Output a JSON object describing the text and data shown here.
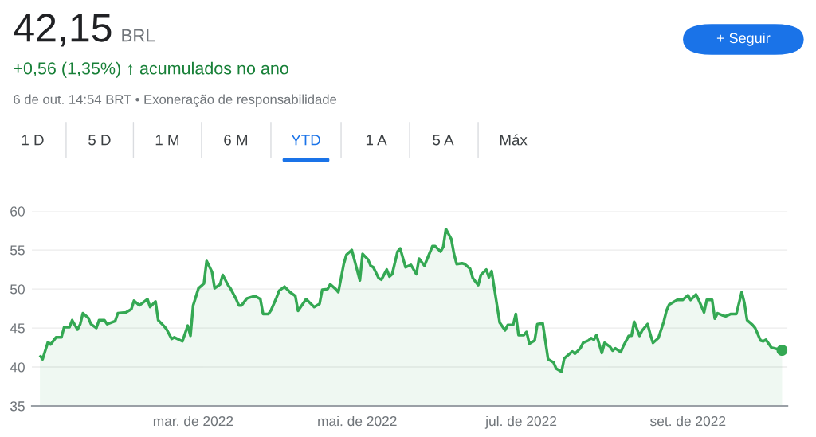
{
  "chart_data": {
    "type": "area",
    "title": "42,15",
    "subtitle": "BRL",
    "annotations": [
      "+0,56 (1,35%) ↑ acumulados no ano",
      "6 de out. 14:54 BRT • Exoneração de responsabilidade",
      "1 D",
      "5 D",
      "1 M",
      "6 M",
      "YTD",
      "1 A",
      "5 A",
      "Máx",
      "+ Seguir"
    ],
    "x": [
      "2022-01-03",
      "2022-01-04",
      "2022-01-06",
      "2022-01-07",
      "2022-01-09",
      "2022-01-11",
      "2022-01-12",
      "2022-01-14",
      "2022-01-15",
      "2022-01-17",
      "2022-01-18",
      "2022-01-19",
      "2022-01-21",
      "2022-01-22",
      "2022-01-24",
      "2022-01-25",
      "2022-01-27",
      "2022-01-28",
      "2022-01-31",
      "2022-02-01",
      "2022-02-04",
      "2022-02-06",
      "2022-02-07",
      "2022-02-09",
      "2022-02-12",
      "2022-02-13",
      "2022-02-15",
      "2022-02-16",
      "2022-02-18",
      "2022-02-19",
      "2022-02-21",
      "2022-02-22",
      "2022-02-25",
      "2022-02-27",
      "2022-02-28",
      "2022-03-01",
      "2022-03-03",
      "2022-03-05",
      "2022-03-06",
      "2022-03-08",
      "2022-03-09",
      "2022-03-11",
      "2022-03-12",
      "2022-03-14",
      "2022-03-15",
      "2022-03-17",
      "2022-03-18",
      "2022-03-19",
      "2022-03-21",
      "2022-03-24",
      "2022-03-26",
      "2022-03-27",
      "2022-03-29",
      "2022-03-30",
      "2022-04-01",
      "2022-04-02",
      "2022-04-04",
      "2022-04-06",
      "2022-04-08",
      "2022-04-09",
      "2022-04-11",
      "2022-04-12",
      "2022-04-15",
      "2022-04-17",
      "2022-04-18",
      "2022-04-20",
      "2022-04-21",
      "2022-04-23",
      "2022-04-24",
      "2022-04-26",
      "2022-04-27",
      "2022-04-29",
      "2022-05-02",
      "2022-05-03",
      "2022-05-05",
      "2022-05-06",
      "2022-05-07",
      "2022-05-09",
      "2022-05-10",
      "2022-05-12",
      "2022-05-13",
      "2022-05-14",
      "2022-05-16",
      "2022-05-17",
      "2022-05-19",
      "2022-05-21",
      "2022-05-23",
      "2022-05-24",
      "2022-05-26",
      "2022-05-29",
      "2022-05-30",
      "2022-06-01",
      "2022-06-02",
      "2022-06-03",
      "2022-06-05",
      "2022-06-06",
      "2022-06-07",
      "2022-06-09",
      "2022-06-10",
      "2022-06-12",
      "2022-06-13",
      "2022-06-15",
      "2022-06-16",
      "2022-06-18",
      "2022-06-19",
      "2022-06-20",
      "2022-06-23",
      "2022-06-25",
      "2022-06-26",
      "2022-06-28",
      "2022-06-29",
      "2022-06-30",
      "2022-07-02",
      "2022-07-03",
      "2022-07-04",
      "2022-07-06",
      "2022-07-07",
      "2022-07-09",
      "2022-07-11",
      "2022-07-13",
      "2022-07-14",
      "2022-07-16",
      "2022-07-17",
      "2022-07-18",
      "2022-07-20",
      "2022-07-21",
      "2022-07-23",
      "2022-07-24",
      "2022-07-26",
      "2022-07-27",
      "2022-07-28",
      "2022-07-29",
      "2022-07-31",
      "2022-08-01",
      "2022-08-03",
      "2022-08-04",
      "2022-08-05",
      "2022-08-07",
      "2022-08-08",
      "2022-08-10",
      "2022-08-11",
      "2022-08-12",
      "2022-08-14",
      "2022-08-15",
      "2022-08-17",
      "2022-08-18",
      "2022-08-19",
      "2022-08-21",
      "2022-08-23",
      "2022-08-24",
      "2022-08-25",
      "2022-08-27",
      "2022-08-28",
      "2022-08-30",
      "2022-09-01",
      "2022-09-02",
      "2022-09-04",
      "2022-09-05",
      "2022-09-07",
      "2022-09-08",
      "2022-09-10",
      "2022-09-11",
      "2022-09-12",
      "2022-09-14",
      "2022-09-15",
      "2022-09-17",
      "2022-09-19",
      "2022-09-21",
      "2022-09-22",
      "2022-09-23",
      "2022-09-25",
      "2022-09-26",
      "2022-09-28",
      "2022-09-29",
      "2022-09-30",
      "2022-10-02",
      "2022-10-06"
    ],
    "series": [
      {
        "color": "#34a853",
        "values": [
          41.5,
          41.0,
          43.2,
          42.9,
          43.8,
          43.8,
          45.1,
          45.1,
          46.0,
          44.8,
          45.5,
          46.9,
          46.3,
          45.5,
          45.0,
          46.0,
          46.0,
          45.5,
          45.9,
          46.9,
          47.0,
          47.4,
          48.5,
          47.9,
          48.7,
          47.7,
          48.4,
          46.0,
          45.3,
          44.9,
          43.6,
          43.8,
          43.3,
          45.3,
          44.0,
          47.9,
          50.1,
          50.7,
          53.6,
          52.2,
          50.1,
          50.6,
          51.8,
          50.5,
          50.0,
          48.7,
          47.9,
          47.9,
          48.8,
          49.1,
          48.7,
          46.8,
          46.8,
          47.3,
          48.9,
          49.8,
          50.3,
          49.6,
          49.1,
          47.2,
          48.2,
          48.7,
          47.7,
          48.1,
          49.9,
          50.0,
          50.6,
          50.0,
          49.6,
          53.2,
          54.4,
          55.0,
          51.1,
          54.5,
          53.8,
          53.0,
          52.8,
          51.4,
          51.2,
          52.5,
          51.6,
          51.9,
          54.8,
          55.2,
          52.8,
          53.1,
          51.9,
          53.9,
          53.0,
          55.5,
          55.5,
          54.8,
          55.4,
          57.7,
          56.4,
          54.5,
          53.2,
          53.3,
          53.2,
          52.6,
          51.4,
          50.5,
          51.8,
          52.5,
          51.5,
          52.3,
          45.7,
          44.7,
          45.4,
          45.4,
          46.8,
          44.1,
          44.1,
          44.5,
          43.0,
          43.4,
          45.5,
          45.6,
          41.0,
          40.6,
          39.8,
          39.4,
          41.1,
          41.4,
          42.0,
          41.7,
          42.4,
          43.1,
          43.4,
          43.7,
          43.5,
          44.1,
          41.8,
          43.1,
          42.6,
          42.1,
          42.4,
          41.9,
          42.7,
          44.0,
          44.0,
          45.8,
          44.0,
          44.7,
          45.5,
          44.2,
          43.1,
          43.7,
          45.8,
          47.2,
          48.0,
          48.4,
          48.6,
          48.6,
          49.2,
          48.6,
          49.3,
          48.6,
          47.0,
          48.6,
          48.6,
          46.2,
          46.9,
          46.6,
          46.5,
          46.8,
          46.8,
          49.6,
          48.2,
          46.0,
          45.4,
          45.0,
          43.4,
          43.3,
          43.5,
          42.5,
          42.15
        ]
      },
      {
        "type": "scatter",
        "color": "#34a853",
        "x": [
          "2022-10-06"
        ],
        "values": [
          42.15
        ]
      }
    ],
    "xlim": [
      "2021-12-31",
      "2022-10-08"
    ],
    "xticks": [
      {
        "value": "2022-03-01",
        "label": "mar. de 2022"
      },
      {
        "value": "2022-05-01",
        "label": "mai. de 2022"
      },
      {
        "value": "2022-07-01",
        "label": "jul. de 2022"
      },
      {
        "value": "2022-09-01",
        "label": "set. de 2022"
      }
    ],
    "ylim": [
      35,
      60
    ],
    "yticks": [
      35,
      40,
      45,
      50,
      55,
      60
    ],
    "grid": "y"
  }
}
